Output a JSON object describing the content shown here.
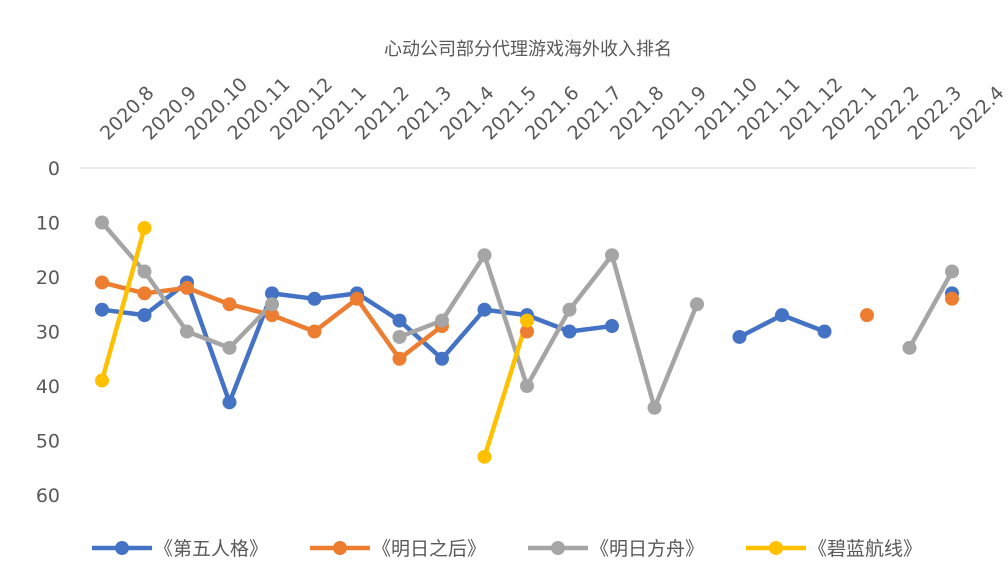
{
  "chart_data": {
    "type": "line",
    "title": "心动公司部分代理游戏海外收入排名",
    "xlabel": "",
    "ylabel": "",
    "y_reversed": true,
    "ylim": [
      0,
      60
    ],
    "yticks": [
      "0",
      "10",
      "20",
      "30",
      "40",
      "50",
      "60"
    ],
    "categories": [
      "2020.8",
      "2020.9",
      "2020.10",
      "2020.11",
      "2020.12",
      "2021.1",
      "2021.2",
      "2021.3",
      "2021.4",
      "2021.5",
      "2021.6",
      "2021.7",
      "2021.8",
      "2021.9",
      "2021.10",
      "2021.11",
      "2021.12",
      "2022.1",
      "2022.2",
      "2022.3",
      "2022.4"
    ],
    "grid": false,
    "legend_position": "bottom",
    "series": [
      {
        "name": "《第五人格》",
        "color": "#4472C4",
        "values": [
          26,
          27,
          21,
          43,
          23,
          24,
          23,
          28,
          35,
          26,
          27,
          30,
          29,
          null,
          null,
          31,
          27,
          30,
          null,
          null,
          23
        ]
      },
      {
        "name": "《明日之后》",
        "color": "#ED7D31",
        "values": [
          21,
          23,
          22,
          25,
          27,
          30,
          24,
          35,
          29,
          null,
          30,
          null,
          null,
          null,
          null,
          null,
          null,
          null,
          27,
          null,
          24
        ]
      },
      {
        "name": "《明日方舟》",
        "color": "#A5A5A5",
        "values": [
          10,
          19,
          30,
          33,
          25,
          null,
          null,
          31,
          28,
          16,
          40,
          26,
          16,
          44,
          25,
          null,
          null,
          null,
          null,
          33,
          19
        ]
      },
      {
        "name": "《碧蓝航线》",
        "color": "#FFC000",
        "values": [
          39,
          11,
          null,
          null,
          null,
          null,
          null,
          null,
          null,
          53,
          28,
          null,
          null,
          null,
          null,
          null,
          null,
          null,
          null,
          null,
          null
        ]
      }
    ]
  }
}
